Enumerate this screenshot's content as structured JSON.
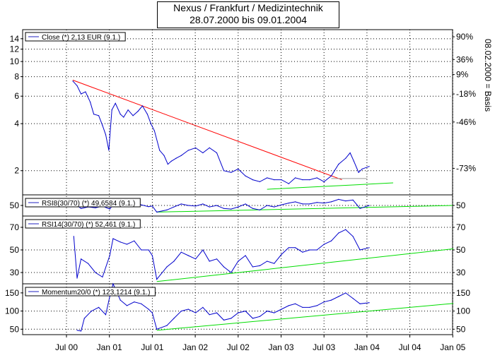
{
  "title": {
    "line1": "Nexus / Frankfurt / Medizintechnik",
    "line2": "28.07.2000 bis 09.01.2004"
  },
  "x_axis": {
    "labels": [
      "Jul 00",
      "Jan 01",
      "Jul 01",
      "Jan 02",
      "Jul 02",
      "Jan 03",
      "Jul 03",
      "Jan 04",
      "Jul 04",
      "Jan 05"
    ]
  },
  "side_label": "08.02.2000 = Basis",
  "colors": {
    "price": "#0000cc",
    "trend_down": "#ff0000",
    "trend_up": "#00dd00",
    "level": "#999999",
    "legend_line": "#2020c0"
  },
  "chart_data": [
    {
      "type": "line",
      "panel": "price",
      "legend": "Close (*) 2,13 EUR (9.1.)",
      "yscale": "log",
      "ylim": [
        1.4,
        16
      ],
      "y_ticks": [
        2,
        4,
        6,
        8,
        10,
        12,
        14
      ],
      "y_ticks_right": [
        {
          "value": 2.07,
          "label": "-73%"
        },
        {
          "value": 4.1,
          "label": "-46%"
        },
        {
          "value": 6.2,
          "label": "-18%"
        },
        {
          "value": 8.25,
          "label": "9%"
        },
        {
          "value": 10.3,
          "label": "36%"
        },
        {
          "value": 14.4,
          "label": "90%"
        }
      ],
      "x": [
        "2000-07-28",
        "2000-08-15",
        "2000-09-01",
        "2000-09-20",
        "2000-10-10",
        "2000-10-25",
        "2000-11-15",
        "2000-12-01",
        "2000-12-15",
        "2000-12-28",
        "2001-01-10",
        "2001-01-25",
        "2001-02-15",
        "2001-03-01",
        "2001-03-20",
        "2001-04-10",
        "2001-05-01",
        "2001-05-20",
        "2001-06-10",
        "2001-06-25",
        "2001-07-10",
        "2001-08-01",
        "2001-08-20",
        "2001-09-05",
        "2001-09-20",
        "2001-10-10",
        "2001-11-01",
        "2001-12-01",
        "2002-01-01",
        "2002-02-01",
        "2002-03-01",
        "2002-04-01",
        "2002-05-01",
        "2002-06-01",
        "2002-07-01",
        "2002-08-01",
        "2002-09-01",
        "2002-10-01",
        "2002-11-01",
        "2002-12-01",
        "2003-01-01",
        "2003-02-01",
        "2003-03-01",
        "2003-04-01",
        "2003-05-01",
        "2003-06-01",
        "2003-07-01",
        "2003-08-01",
        "2003-09-01",
        "2003-10-01",
        "2003-10-20",
        "2003-11-05",
        "2003-11-25",
        "2003-12-10",
        "2004-01-09"
      ],
      "values": [
        7.5,
        7.0,
        6.2,
        6.4,
        5.5,
        4.6,
        4.5,
        3.9,
        3.4,
        2.7,
        4.9,
        5.4,
        4.6,
        4.4,
        4.9,
        4.5,
        4.8,
        5.2,
        4.6,
        4.0,
        3.6,
        2.7,
        2.5,
        2.2,
        2.3,
        2.4,
        2.5,
        2.7,
        2.8,
        2.6,
        2.8,
        2.6,
        2.0,
        1.95,
        2.05,
        1.85,
        1.75,
        1.7,
        1.8,
        1.75,
        1.75,
        1.65,
        1.8,
        1.75,
        1.75,
        1.8,
        1.7,
        1.85,
        2.2,
        2.4,
        2.6,
        2.3,
        1.95,
        2.05,
        2.13
      ]
    },
    {
      "type": "line",
      "panel": "rsi8",
      "legend": "RSI8(30/70) (*) 49,6584 (9.1.)",
      "ylim": [
        15,
        85
      ],
      "y_ticks": [
        50
      ],
      "x": [
        "2000-08-15",
        "2000-09-01",
        "2000-10-01",
        "2000-11-01",
        "2000-12-01",
        "2001-01-01",
        "2001-01-15",
        "2001-02-15",
        "2001-03-15",
        "2001-04-15",
        "2001-05-15",
        "2001-06-15",
        "2001-07-01",
        "2001-07-20",
        "2001-09-01",
        "2001-10-01",
        "2001-11-01",
        "2001-12-01",
        "2002-01-01",
        "2002-02-01",
        "2002-03-01",
        "2002-04-01",
        "2002-05-01",
        "2002-06-01",
        "2002-07-01",
        "2002-08-01",
        "2002-09-01",
        "2002-10-01",
        "2002-11-01",
        "2002-12-01",
        "2003-01-01",
        "2003-02-01",
        "2003-03-01",
        "2003-04-01",
        "2003-05-01",
        "2003-06-01",
        "2003-07-01",
        "2003-08-01",
        "2003-09-01",
        "2003-10-01",
        "2003-11-01",
        "2003-12-01",
        "2004-01-09"
      ],
      "values": [
        50,
        40,
        45,
        42,
        48,
        38,
        52,
        56,
        50,
        54,
        52,
        46,
        48,
        28,
        35,
        45,
        55,
        50,
        48,
        55,
        45,
        50,
        40,
        38,
        45,
        55,
        40,
        35,
        50,
        45,
        52,
        58,
        62,
        55,
        55,
        60,
        58,
        62,
        70,
        65,
        68,
        40,
        50
      ]
    },
    {
      "type": "line",
      "panel": "rsi14",
      "legend": "RSI14(30/70) (*) 52,461 (9.1.)",
      "ylim": [
        20,
        80
      ],
      "y_ticks": [
        30,
        50,
        70
      ],
      "x": [
        "2000-08-01",
        "2000-08-15",
        "2000-09-01",
        "2000-10-01",
        "2000-11-01",
        "2000-12-01",
        "2001-01-01",
        "2001-01-15",
        "2001-02-15",
        "2001-03-15",
        "2001-04-15",
        "2001-05-15",
        "2001-06-15",
        "2001-07-01",
        "2001-07-20",
        "2001-09-01",
        "2001-10-01",
        "2001-11-01",
        "2001-12-01",
        "2002-01-01",
        "2002-02-01",
        "2002-03-01",
        "2002-04-01",
        "2002-05-01",
        "2002-06-01",
        "2002-07-01",
        "2002-08-01",
        "2002-09-01",
        "2002-10-01",
        "2002-11-01",
        "2002-12-01",
        "2003-01-01",
        "2003-02-01",
        "2003-03-01",
        "2003-04-01",
        "2003-05-01",
        "2003-06-01",
        "2003-07-01",
        "2003-08-01",
        "2003-09-01",
        "2003-10-01",
        "2003-11-01",
        "2003-12-01",
        "2004-01-09"
      ],
      "values": [
        62,
        25,
        42,
        38,
        30,
        26,
        45,
        60,
        57,
        55,
        58,
        50,
        50,
        45,
        24,
        35,
        40,
        48,
        45,
        42,
        50,
        40,
        42,
        35,
        30,
        40,
        45,
        35,
        36,
        40,
        38,
        46,
        52,
        52,
        48,
        50,
        50,
        55,
        58,
        65,
        68,
        62,
        50,
        52
      ]
    },
    {
      "type": "line",
      "panel": "momentum",
      "legend": "Momentum20/0 (*) 123,1214 (9.1.)",
      "ylim": [
        35,
        175
      ],
      "y_ticks": [
        50,
        100,
        150
      ],
      "x": [
        "2000-08-15",
        "2000-09-01",
        "2000-09-15",
        "2000-10-15",
        "2000-11-15",
        "2000-12-15",
        "2001-01-01",
        "2001-01-15",
        "2001-02-15",
        "2001-03-15",
        "2001-04-15",
        "2001-05-15",
        "2001-06-15",
        "2001-07-01",
        "2001-07-20",
        "2001-09-01",
        "2001-10-01",
        "2001-11-01",
        "2001-12-01",
        "2002-01-01",
        "2002-02-01",
        "2002-03-01",
        "2002-04-01",
        "2002-05-01",
        "2002-06-01",
        "2002-07-01",
        "2002-08-01",
        "2002-09-01",
        "2002-10-01",
        "2002-11-01",
        "2002-12-01",
        "2003-01-01",
        "2003-02-01",
        "2003-03-01",
        "2003-04-01",
        "2003-05-01",
        "2003-06-01",
        "2003-07-01",
        "2003-08-01",
        "2003-09-01",
        "2003-10-01",
        "2003-11-01",
        "2003-12-01",
        "2004-01-09"
      ],
      "values": [
        47,
        45,
        80,
        100,
        110,
        90,
        140,
        175,
        130,
        115,
        125,
        120,
        105,
        95,
        50,
        60,
        80,
        100,
        105,
        95,
        110,
        90,
        95,
        75,
        80,
        95,
        100,
        80,
        85,
        100,
        95,
        105,
        115,
        120,
        110,
        110,
        115,
        125,
        130,
        140,
        150,
        135,
        120,
        123
      ]
    }
  ],
  "trendlines": [
    {
      "panel": "price",
      "color": "trend_down",
      "from": {
        "x": "2000-07-28",
        "y": 7.6
      },
      "to": {
        "x": "2003-09-15",
        "y": 1.75
      }
    },
    {
      "panel": "price",
      "color": "level",
      "from": {
        "x": "2003-08-01",
        "y": 1.78
      },
      "to": {
        "x": "2004-01-01",
        "y": 1.78
      }
    },
    {
      "panel": "price",
      "color": "trend_up",
      "from": {
        "x": "2002-11-01",
        "y": 1.52
      },
      "to": {
        "x": "2004-04-20",
        "y": 1.67
      }
    },
    {
      "panel": "rsi8",
      "color": "trend_up",
      "from": {
        "x": "2001-07-20",
        "y": 28
      },
      "to": {
        "x": "2005-01-01",
        "y": 50
      }
    },
    {
      "panel": "rsi14",
      "color": "trend_up",
      "from": {
        "x": "2001-07-20",
        "y": 22
      },
      "to": {
        "x": "2005-01-01",
        "y": 51
      }
    },
    {
      "panel": "momentum",
      "color": "trend_up",
      "from": {
        "x": "2001-07-20",
        "y": 47
      },
      "to": {
        "x": "2005-01-01",
        "y": 121
      }
    }
  ]
}
